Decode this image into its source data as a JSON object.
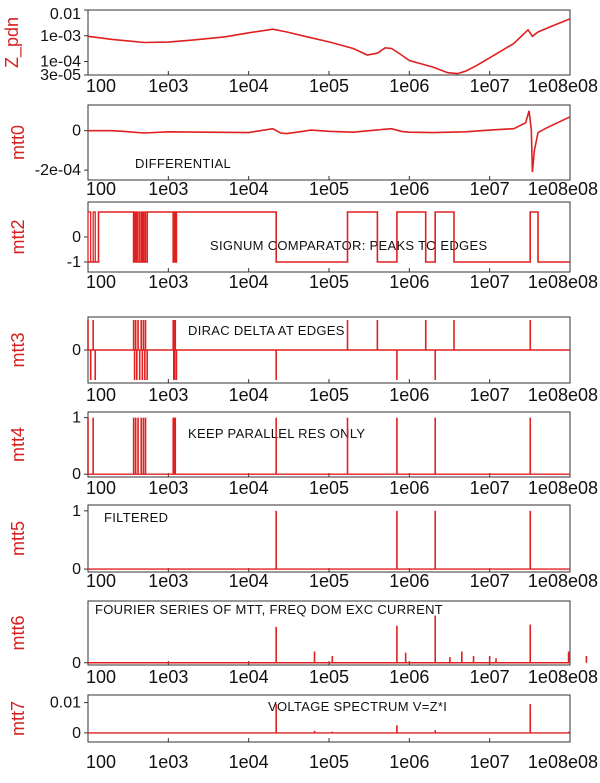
{
  "colors": {
    "trace": "#e02020",
    "axis_label": "#d42020",
    "frame": "#333333",
    "text": "#111111"
  },
  "x_axis": {
    "scale": "log",
    "range": [
      100,
      100000000
    ],
    "tick_values": [
      100,
      1000,
      10000,
      100000,
      1000000,
      10000000,
      100000000
    ],
    "tick_labels": [
      "100",
      "1e03",
      "1e04",
      "1e05",
      "1e06",
      "1e07",
      "1e08e08"
    ]
  },
  "chart_data": [
    {
      "type": "line",
      "ylabel": "Z_pdn",
      "yscale": "log",
      "ylim": [
        3e-05,
        0.01
      ],
      "yticks": [
        {
          "value": 0.01,
          "label": "0.01"
        },
        {
          "value": 0.001,
          "label": "1e-03"
        },
        {
          "value": 0.0001,
          "label": "1e-04"
        },
        {
          "value": 3e-05,
          "label": "3e-05"
        }
      ],
      "annotation": "",
      "series": [
        {
          "x": [
            100,
            200,
            500,
            1000,
            2000,
            5000,
            10000,
            20000,
            30000,
            50000,
            100000,
            200000,
            300000,
            400000,
            500000,
            600000,
            800000,
            1000000,
            2000000,
            3000000,
            4000000,
            5000000,
            7000000,
            10000000,
            20000000,
            30000000,
            34000000,
            40000000,
            60000000,
            100000000
          ],
          "y": [
            0.00095,
            0.00072,
            0.00055,
            0.00057,
            0.00068,
            0.0009,
            0.0013,
            0.0018,
            0.0014,
            0.00095,
            0.00058,
            0.00032,
            0.00018,
            0.00021,
            0.00034,
            0.00032,
            0.00018,
            0.00011,
            6e-05,
            3.7e-05,
            3.4e-05,
            4.2e-05,
            7.2e-05,
            0.00014,
            0.0005,
            0.0017,
            0.00095,
            0.0014,
            0.0024,
            0.0045
          ]
        }
      ]
    },
    {
      "type": "line",
      "ylabel": "mtt0",
      "yscale": "linear",
      "ylim": [
        -0.00025,
        0.00013
      ],
      "yticks": [
        {
          "value": 0,
          "label": "0"
        },
        {
          "value": -0.0002,
          "label": "-2e-04"
        }
      ],
      "annotation": "DIFFERENTIAL",
      "series": [
        {
          "x": [
            100,
            200,
            300,
            500,
            1000,
            3000,
            10000,
            20000,
            25000,
            30000,
            40000,
            60000,
            100000,
            200000,
            400000,
            600000,
            800000,
            1000000,
            2000000,
            5000000,
            10000000,
            20000000,
            28000000,
            31000000,
            33000000,
            34000000,
            36000000,
            40000000,
            50000000,
            100000000
          ],
          "y": [
            0,
            0,
            -5e-06,
            -1.2e-05,
            -6e-06,
            -8e-06,
            -1e-05,
            1e-05,
            -1.2e-05,
            -1.5e-05,
            -8e-06,
            3e-06,
            -3e-06,
            -8e-06,
            4e-06,
            1e-05,
            -4e-06,
            -8e-06,
            -1e-05,
            -6e-06,
            3e-06,
            1e-05,
            4e-05,
            0.0001,
            5e-06,
            -0.00021,
            -0.0001,
            -1e-05,
            1.2e-05,
            7e-05
          ]
        }
      ]
    },
    {
      "type": "line",
      "ylabel": "mtt2",
      "yscale": "linear",
      "ylim": [
        -1.4,
        1.4
      ],
      "yticks": [
        {
          "value": 0,
          "label": "0"
        },
        {
          "value": -1,
          "label": "-1"
        }
      ],
      "annotation": "SIGNUM COMPARATOR: PEAKS TO EDGES",
      "pulses_high": [
        [
          100,
          108
        ],
        [
          116,
          123
        ],
        [
          370,
          380
        ],
        [
          392,
          405
        ],
        [
          420,
          440
        ],
        [
          460,
          475
        ],
        [
          490,
          510
        ],
        [
          520,
          545
        ],
        [
          1150,
          1170
        ],
        [
          1180,
          1195
        ],
        [
          1200,
          1220
        ],
        [
          1230,
          1260
        ]
      ],
      "series": [
        {
          "x": [
            100,
            135,
            135,
            370,
            370,
            545,
            545,
            1150,
            1150,
            1260,
            1260,
            22000,
            22000,
            170000,
            170000,
            400000,
            400000,
            700000,
            700000,
            1600000,
            1600000,
            2100000,
            2100000,
            3600000,
            3600000,
            32000000,
            32000000,
            40000000,
            40000000,
            100000000
          ],
          "y": [
            -1,
            -1,
            1,
            1,
            -1,
            -1,
            1,
            1,
            -1,
            -1,
            1,
            1,
            -1,
            -1,
            1,
            1,
            -1,
            -1,
            1,
            1,
            -1,
            -1,
            1,
            1,
            -1,
            -1,
            1,
            1,
            -1,
            -1
          ]
        }
      ]
    },
    {
      "type": "line",
      "ylabel": "mtt3",
      "yscale": "linear",
      "ylim": [
        -1.1,
        1.1
      ],
      "yticks": [
        {
          "value": 0,
          "label": "0"
        }
      ],
      "annotation": "DIRAC DELTA AT EDGES",
      "series": [
        {
          "spikes": [
            {
              "x": 100,
              "y": 1
            },
            {
              "x": 108,
              "y": -1
            },
            {
              "x": 116,
              "y": 1
            },
            {
              "x": 123,
              "y": -1
            },
            {
              "x": 370,
              "y": 1
            },
            {
              "x": 380,
              "y": -1
            },
            {
              "x": 392,
              "y": 1
            },
            {
              "x": 405,
              "y": -1
            },
            {
              "x": 420,
              "y": 1
            },
            {
              "x": 440,
              "y": -1
            },
            {
              "x": 460,
              "y": 1
            },
            {
              "x": 475,
              "y": -1
            },
            {
              "x": 490,
              "y": 1
            },
            {
              "x": 510,
              "y": -1
            },
            {
              "x": 520,
              "y": 1
            },
            {
              "x": 545,
              "y": -1
            },
            {
              "x": 1150,
              "y": 1
            },
            {
              "x": 1170,
              "y": -1
            },
            {
              "x": 1180,
              "y": 1
            },
            {
              "x": 1195,
              "y": -1
            },
            {
              "x": 1220,
              "y": 1
            },
            {
              "x": 1260,
              "y": -1
            },
            {
              "x": 22000,
              "y": -1
            },
            {
              "x": 170000,
              "y": 1
            },
            {
              "x": 400000,
              "y": 1
            },
            {
              "x": 700000,
              "y": -1
            },
            {
              "x": 1600000,
              "y": 1
            },
            {
              "x": 2100000,
              "y": -1
            },
            {
              "x": 3600000,
              "y": 1
            },
            {
              "x": 32000000,
              "y": 1
            }
          ]
        }
      ]
    },
    {
      "type": "line",
      "ylabel": "mtt4",
      "yscale": "linear",
      "ylim": [
        -0.05,
        1.1
      ],
      "yticks": [
        {
          "value": 1,
          "label": "1"
        },
        {
          "value": 0,
          "label": "0"
        }
      ],
      "annotation": "KEEP PARALLEL RES ONLY",
      "series": [
        {
          "spikes": [
            {
              "x": 100,
              "y": 1
            },
            {
              "x": 116,
              "y": 1
            },
            {
              "x": 370,
              "y": 1
            },
            {
              "x": 392,
              "y": 1
            },
            {
              "x": 420,
              "y": 1
            },
            {
              "x": 460,
              "y": 1
            },
            {
              "x": 490,
              "y": 1
            },
            {
              "x": 520,
              "y": 1
            },
            {
              "x": 1150,
              "y": 1
            },
            {
              "x": 1180,
              "y": 1
            },
            {
              "x": 1220,
              "y": 1
            },
            {
              "x": 22000,
              "y": 1
            },
            {
              "x": 170000,
              "y": 1
            },
            {
              "x": 700000,
              "y": 1
            },
            {
              "x": 2100000,
              "y": 1
            },
            {
              "x": 32000000,
              "y": 1
            }
          ]
        }
      ]
    },
    {
      "type": "line",
      "ylabel": "mtt5",
      "yscale": "linear",
      "ylim": [
        -0.05,
        1.1
      ],
      "yticks": [
        {
          "value": 1,
          "label": "1"
        },
        {
          "value": 0,
          "label": "0"
        }
      ],
      "annotation": "FILTERED",
      "series": [
        {
          "spikes": [
            {
              "x": 22000,
              "y": 1
            },
            {
              "x": 700000,
              "y": 1
            },
            {
              "x": 2100000,
              "y": 1
            },
            {
              "x": 32000000,
              "y": 1
            }
          ]
        }
      ]
    },
    {
      "type": "line",
      "ylabel": "mtt6",
      "yscale": "linear",
      "ylim": [
        -0.02,
        0.55
      ],
      "yticks": [
        {
          "value": 0,
          "label": "0"
        }
      ],
      "annotation": "FOURIER SERIES OF MTT, FREQ DOM EXC CURRENT",
      "series": [
        {
          "spikes": [
            {
              "x": 22000,
              "y": 0.32
            },
            {
              "x": 66000,
              "y": 0.1
            },
            {
              "x": 110000,
              "y": 0.06
            },
            {
              "x": 700000,
              "y": 0.33
            },
            {
              "x": 900000,
              "y": 0.09
            },
            {
              "x": 2100000,
              "y": 0.42
            },
            {
              "x": 3200000,
              "y": 0.05
            },
            {
              "x": 4500000,
              "y": 0.1
            },
            {
              "x": 6300000,
              "y": 0.06
            },
            {
              "x": 10000000,
              "y": 0.06
            },
            {
              "x": 12000000,
              "y": 0.04
            },
            {
              "x": 32000000,
              "y": 0.34
            },
            {
              "x": 96000000,
              "y": 0.1
            },
            {
              "x": 160000000,
              "y": 0.06
            }
          ]
        }
      ]
    },
    {
      "type": "line",
      "ylabel": "mtt7",
      "yscale": "linear",
      "ylim": [
        -0.003,
        0.0125
      ],
      "yticks": [
        {
          "value": 0.01,
          "label": "0.01"
        },
        {
          "value": 0,
          "label": "0"
        }
      ],
      "annotation": "VOLTAGE SPECTRUM V=Z*I",
      "series": [
        {
          "spikes": [
            {
              "x": 22000,
              "y": 0.0095
            },
            {
              "x": 66000,
              "y": 0.0007
            },
            {
              "x": 110000,
              "y": 0.0004
            },
            {
              "x": 700000,
              "y": 0.0025
            },
            {
              "x": 2100000,
              "y": 0.0009
            },
            {
              "x": 32000000,
              "y": 0.0095
            },
            {
              "x": 96000000,
              "y": 0.0004
            }
          ]
        }
      ]
    }
  ]
}
